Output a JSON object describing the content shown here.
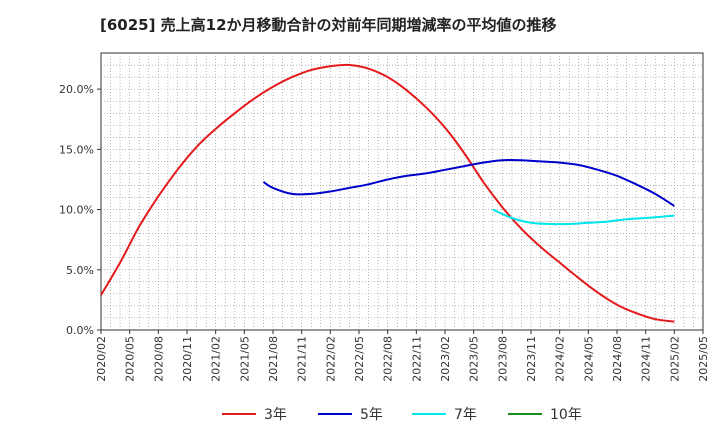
{
  "chart_data": {
    "type": "line",
    "title": "[6025]  売上高12か月移動合計の対前年同期増減率の平均値の推移",
    "xlabel": "",
    "ylabel": "",
    "x_ticks": [
      "2020/02",
      "2020/05",
      "2020/08",
      "2020/11",
      "2021/02",
      "2021/05",
      "2021/08",
      "2021/11",
      "2022/02",
      "2022/05",
      "2022/08",
      "2022/11",
      "2023/02",
      "2023/05",
      "2023/08",
      "2023/11",
      "2024/02",
      "2024/05",
      "2024/08",
      "2024/11",
      "2025/02",
      "2025/05"
    ],
    "y_ticks": [
      "0.0%",
      "5.0%",
      "10.0%",
      "15.0%",
      "20.0%"
    ],
    "ylim": [
      0,
      23
    ],
    "grid": true,
    "legend_position": "bottom",
    "series": [
      {
        "name": "3年",
        "color": "#e41a1c",
        "points": [
          [
            "2020/02",
            2.9
          ],
          [
            "2020/04",
            5.6
          ],
          [
            "2020/06",
            8.6
          ],
          [
            "2020/08",
            11.1
          ],
          [
            "2020/10",
            13.3
          ],
          [
            "2020/12",
            15.2
          ],
          [
            "2021/02",
            16.7
          ],
          [
            "2021/04",
            18.0
          ],
          [
            "2021/06",
            19.2
          ],
          [
            "2021/08",
            20.2
          ],
          [
            "2021/10",
            21.0
          ],
          [
            "2021/12",
            21.6
          ],
          [
            "2022/02",
            21.9
          ],
          [
            "2022/04",
            22.0
          ],
          [
            "2022/06",
            21.7
          ],
          [
            "2022/08",
            21.0
          ],
          [
            "2022/10",
            19.9
          ],
          [
            "2022/12",
            18.5
          ],
          [
            "2023/02",
            16.8
          ],
          [
            "2023/04",
            14.7
          ],
          [
            "2023/06",
            12.3
          ],
          [
            "2023/08",
            10.2
          ],
          [
            "2023/10",
            8.4
          ],
          [
            "2023/12",
            6.9
          ],
          [
            "2024/02",
            5.6
          ],
          [
            "2024/04",
            4.3
          ],
          [
            "2024/06",
            3.1
          ],
          [
            "2024/08",
            2.1
          ],
          [
            "2024/10",
            1.4
          ],
          [
            "2024/12",
            0.9
          ],
          [
            "2025/02",
            0.7
          ]
        ]
      },
      {
        "name": "5年",
        "color": "#0000cc",
        "points": [
          [
            "2021/07",
            12.3
          ],
          [
            "2021/08",
            11.8
          ],
          [
            "2021/10",
            11.3
          ],
          [
            "2021/12",
            11.3
          ],
          [
            "2022/02",
            11.5
          ],
          [
            "2022/04",
            11.8
          ],
          [
            "2022/06",
            12.1
          ],
          [
            "2022/08",
            12.5
          ],
          [
            "2022/10",
            12.8
          ],
          [
            "2022/12",
            13.0
          ],
          [
            "2023/02",
            13.3
          ],
          [
            "2023/04",
            13.6
          ],
          [
            "2023/06",
            13.9
          ],
          [
            "2023/08",
            14.1
          ],
          [
            "2023/10",
            14.1
          ],
          [
            "2023/12",
            14.0
          ],
          [
            "2024/02",
            13.9
          ],
          [
            "2024/04",
            13.7
          ],
          [
            "2024/06",
            13.3
          ],
          [
            "2024/08",
            12.8
          ],
          [
            "2024/10",
            12.1
          ],
          [
            "2024/12",
            11.3
          ],
          [
            "2025/02",
            10.3
          ]
        ]
      },
      {
        "name": "7年",
        "color": "#00e5ee",
        "points": [
          [
            "2023/07",
            10.0
          ],
          [
            "2023/09",
            9.3
          ],
          [
            "2023/11",
            8.9
          ],
          [
            "2024/01",
            8.8
          ],
          [
            "2024/03",
            8.8
          ],
          [
            "2024/05",
            8.9
          ],
          [
            "2024/07",
            9.0
          ],
          [
            "2024/09",
            9.2
          ],
          [
            "2024/11",
            9.3
          ],
          [
            "2025/02",
            9.5
          ]
        ]
      },
      {
        "name": "10年",
        "color": "#1a8c1a",
        "points": []
      }
    ]
  }
}
